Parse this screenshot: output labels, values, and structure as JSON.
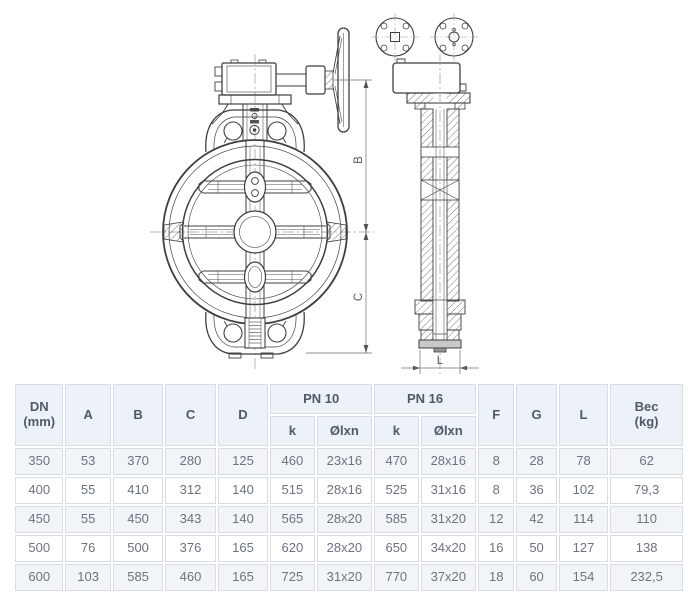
{
  "colors": {
    "header_bg": "#ecf2f7",
    "row_alt_bg": "#f2f5f8",
    "cell_border": "#d7dde3",
    "header_text": "#4e5a68",
    "cell_text": "#6b7380",
    "line_color": "#3f3f3f"
  },
  "drawing": {
    "labels": {
      "b": "B",
      "c": "C",
      "l": "L"
    }
  },
  "table": {
    "headers": {
      "dn_line1": "DN",
      "dn_line2": "(mm)",
      "a": "A",
      "b": "B",
      "c": "C",
      "d": "D",
      "pn10": "PN 10",
      "pn16": "PN 16",
      "k": "k",
      "olxn": "Ølxn",
      "f": "F",
      "g": "G",
      "l": "L",
      "bec_line1": "Bec",
      "bec_line2": "(kg)"
    },
    "rows": [
      [
        "350",
        "53",
        "370",
        "280",
        "125",
        "460",
        "23x16",
        "470",
        "28x16",
        "8",
        "28",
        "78",
        "62"
      ],
      [
        "400",
        "55",
        "410",
        "312",
        "140",
        "515",
        "28x16",
        "525",
        "31x16",
        "8",
        "36",
        "102",
        "79,3"
      ],
      [
        "450",
        "55",
        "450",
        "343",
        "140",
        "565",
        "28x20",
        "585",
        "31x20",
        "12",
        "42",
        "114",
        "110"
      ],
      [
        "500",
        "76",
        "500",
        "376",
        "165",
        "620",
        "28x20",
        "650",
        "34x20",
        "16",
        "50",
        "127",
        "138"
      ],
      [
        "600",
        "103",
        "585",
        "460",
        "165",
        "725",
        "31x20",
        "770",
        "37x20",
        "18",
        "60",
        "154",
        "232,5"
      ]
    ]
  }
}
